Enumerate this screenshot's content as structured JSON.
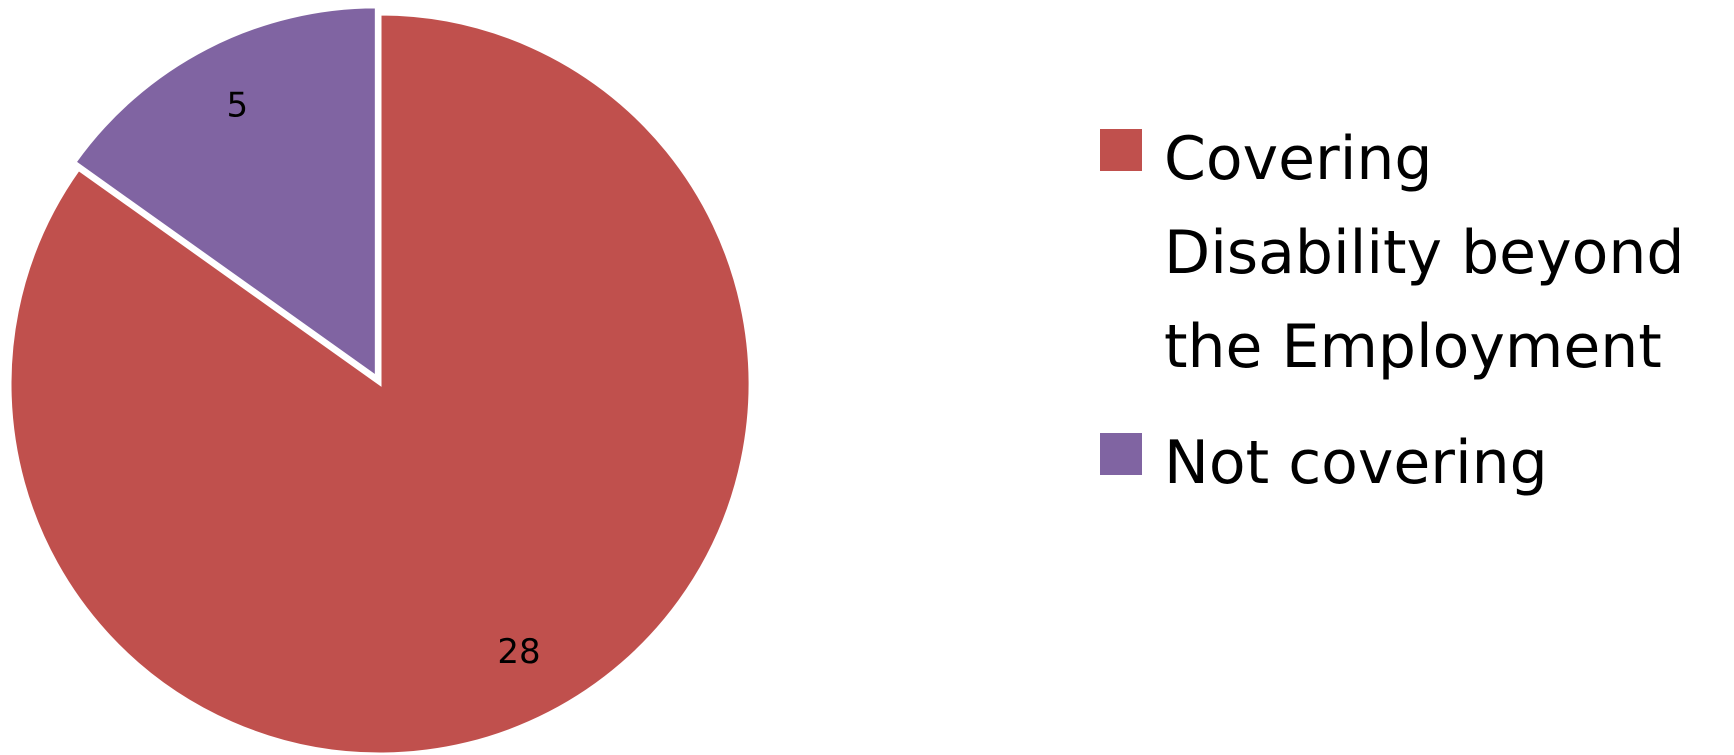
{
  "chart_data": {
    "type": "pie",
    "start_angle_deg": 0,
    "direction": "clockwise",
    "slices": [
      {
        "label": "Covering Disability beyond the Employment",
        "value": 28,
        "color": "#C0504D"
      },
      {
        "label": "Not covering",
        "value": 5,
        "color": "#8064A2"
      }
    ],
    "data_labels": [
      "28",
      "5"
    ],
    "legend": {
      "position": "right",
      "entries": [
        "Covering Disability beyond the Employment",
        "Not covering"
      ]
    }
  }
}
